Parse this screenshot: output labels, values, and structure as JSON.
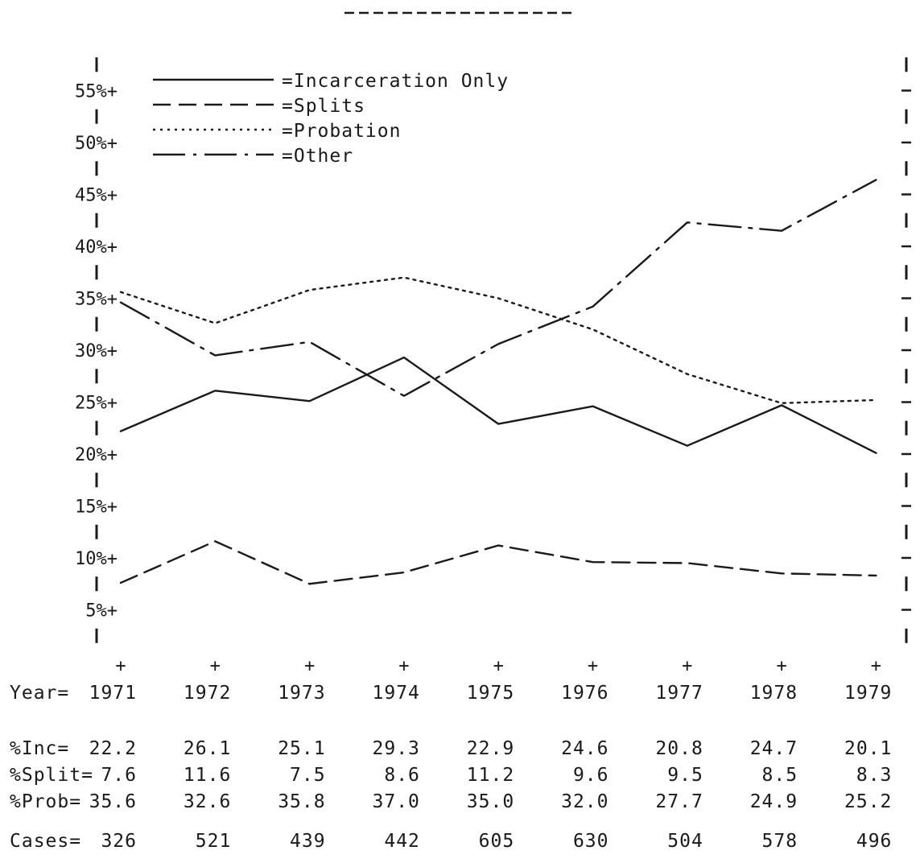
{
  "chart_data": {
    "type": "line",
    "title": "",
    "xlabel": "Year=",
    "ylabel": "",
    "x": [
      "1971",
      "1972",
      "1973",
      "1974",
      "1975",
      "1976",
      "1977",
      "1978",
      "1979"
    ],
    "ylim": [
      0,
      60
    ],
    "y_ticks": [
      "5%+",
      "10%+",
      "15%+",
      "20%+",
      "25%+",
      "30%+",
      "35%+",
      "40%+",
      "45%+",
      "50%+",
      "55%+"
    ],
    "grid": false,
    "legend_position": "top-left",
    "series": [
      {
        "name": "=Incarceration Only",
        "style": "solid",
        "values": [
          22.2,
          26.1,
          25.1,
          29.3,
          22.9,
          24.6,
          20.8,
          24.7,
          20.1
        ]
      },
      {
        "name": "=Splits",
        "style": "dashed",
        "values": [
          7.6,
          11.6,
          7.5,
          8.6,
          11.2,
          9.6,
          9.5,
          8.5,
          8.3
        ]
      },
      {
        "name": "=Probation",
        "style": "dotted",
        "values": [
          35.6,
          32.6,
          35.8,
          37.0,
          35.0,
          32.0,
          27.7,
          24.9,
          25.2
        ]
      },
      {
        "name": "=Other",
        "style": "dash-dot",
        "values": [
          34.6,
          29.5,
          30.8,
          25.6,
          30.6,
          34.2,
          42.3,
          41.5,
          46.4
        ]
      }
    ],
    "table": {
      "rows": [
        {
          "label": "%Inc=",
          "values": [
            "22.2",
            "26.1",
            "25.1",
            "29.3",
            "22.9",
            "24.6",
            "20.8",
            "24.7",
            "20.1"
          ]
        },
        {
          "label": "%Split=",
          "values": [
            "7.6",
            "11.6",
            "7.5",
            "8.6",
            "11.2",
            "9.6",
            "9.5",
            "8.5",
            "8.3"
          ]
        },
        {
          "label": "%Prob=",
          "values": [
            "35.6",
            "32.6",
            "35.8",
            "37.0",
            "35.0",
            "32.0",
            "27.7",
            "24.9",
            "25.2"
          ]
        }
      ],
      "cases_label": "Cases=",
      "cases": [
        "326",
        "521",
        "439",
        "442",
        "605",
        "630",
        "504",
        "578",
        "496"
      ]
    }
  },
  "colors": {
    "ink": "#1a1a1a",
    "background": "#ffffff"
  }
}
